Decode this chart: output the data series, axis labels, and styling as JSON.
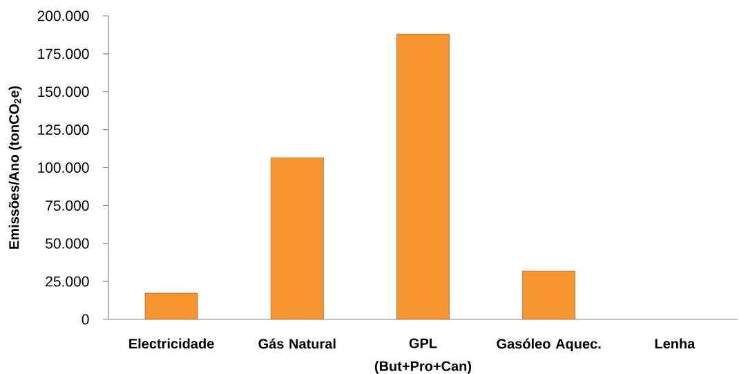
{
  "chart_data": {
    "type": "bar",
    "ylabel": "Emissões/Ano (tonCO$_{2}$e)",
    "categories": [
      "Electricidade",
      "Gás Natural",
      "GPL (But+Pro+Can)",
      "Gasóleo Aquec.",
      "Lenha"
    ],
    "values": [
      17300,
      106500,
      188000,
      31800,
      0
    ],
    "color": "#f7952f",
    "ylim": [
      0,
      200000
    ],
    "yticks": [
      0,
      {
        "value": 25000,
        "label": "25.000"
      },
      {
        "value": 50000,
        "label": "50.000"
      },
      {
        "value": 75000,
        "label": "75.000"
      },
      {
        "value": 100000,
        "label": "100.000"
      },
      {
        "value": 125000,
        "label": "125.000"
      },
      {
        "value": 150000,
        "label": "150.000"
      },
      {
        "value": 175000,
        "label": "175.000"
      },
      {
        "value": 200000,
        "label": "200.000"
      }
    ]
  }
}
